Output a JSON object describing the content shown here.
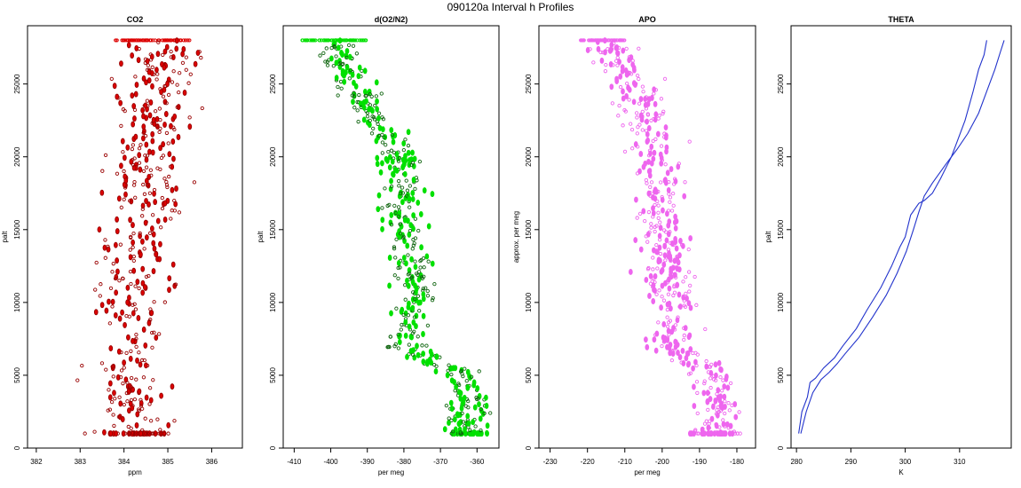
{
  "page_title": "090120a   Interval h Profiles",
  "chart_data": [
    {
      "type": "scatter",
      "title": "CO2",
      "xlabel": "ppm",
      "ylabel": "palt",
      "xlim": [
        381.8,
        386.7
      ],
      "ylim": [
        0,
        29000
      ],
      "xticks": [
        382,
        383,
        384,
        385,
        386
      ],
      "yticks": [
        0,
        5000,
        10000,
        15000,
        20000,
        25000
      ],
      "color": "#dd0000",
      "series": [
        {
          "center": [
            [
              384.3,
              1000
            ],
            [
              384.05,
              5000
            ],
            [
              384.15,
              10000
            ],
            [
              384.45,
              15000
            ],
            [
              384.55,
              20000
            ],
            [
              384.75,
              25000
            ],
            [
              384.8,
              28000
            ]
          ],
          "spread": 0.45,
          "points": 480
        }
      ],
      "cap_band": {
        "x": [
          383.8,
          385.5
        ],
        "y": 28000
      }
    },
    {
      "type": "scatter",
      "title": "d(O2/N2)",
      "xlabel": "per meg",
      "ylabel": "palt",
      "xlim": [
        -413,
        -354
      ],
      "ylim": [
        0,
        29000
      ],
      "xticks": [
        -410,
        -400,
        -390,
        -380,
        -370,
        -360
      ],
      "yticks": [
        0,
        5000,
        10000,
        15000,
        20000,
        25000
      ],
      "color": "#00e000",
      "series": [
        {
          "center": [
            [
              -362,
              1000
            ],
            [
              -363,
              5000
            ],
            [
              -380,
              7000
            ],
            [
              -377,
              10000
            ],
            [
              -380,
              15000
            ],
            [
              -381,
              20000
            ],
            [
              -393,
              25000
            ],
            [
              -400,
              28000
            ]
          ],
          "spread": 2.8,
          "points": 560
        }
      ],
      "cap_band": {
        "x": [
          -408,
          -390
        ],
        "y": 28000
      }
    },
    {
      "type": "scatter",
      "title": "APO",
      "xlabel": "per meg",
      "ylabel": "approx. per meg",
      "xlim": [
        -233,
        -175
      ],
      "ylim": [
        0,
        29000
      ],
      "xticks": [
        -230,
        -220,
        -210,
        -200,
        -190,
        -180
      ],
      "yticks": [
        0,
        5000,
        10000,
        15000,
        20000,
        25000
      ],
      "color": "#ee66ee",
      "series": [
        {
          "center": [
            [
              -185,
              1000
            ],
            [
              -186,
              5000
            ],
            [
              -198,
              7000
            ],
            [
              -197,
              10000
            ],
            [
              -200,
              15000
            ],
            [
              -201,
              20000
            ],
            [
              -208,
              25000
            ],
            [
              -215,
              28000
            ]
          ],
          "spread": 3.2,
          "points": 560
        }
      ],
      "cap_band": {
        "x": [
          -222,
          -210
        ],
        "y": 28000
      }
    },
    {
      "type": "line",
      "title": "THETA",
      "xlabel": "K",
      "ylabel": "palt",
      "xlim": [
        279,
        319.5
      ],
      "ylim": [
        0,
        29000
      ],
      "xticks": [
        280,
        290,
        300,
        310
      ],
      "yticks": [
        0,
        5000,
        10000,
        15000,
        20000,
        25000
      ],
      "color": "#2233cc",
      "series": [
        {
          "name": "",
          "x": [
            280.4,
            281,
            282,
            282.5,
            283.5,
            285,
            287,
            288.5,
            291,
            293,
            295.5,
            297.5,
            299,
            300,
            301,
            302.5,
            303.5,
            305,
            306.5,
            308.5,
            309.5,
            311,
            312.5,
            313.5,
            314.5,
            315
          ],
          "y": [
            1000,
            2500,
            3500,
            4500,
            4800,
            5500,
            6200,
            7000,
            8200,
            9500,
            11000,
            12500,
            13800,
            14500,
            16000,
            16800,
            17000,
            17500,
            18500,
            20000,
            21000,
            22500,
            24500,
            26000,
            27000,
            28000
          ]
        },
        {
          "name": "",
          "x": [
            280.8,
            281.8,
            283,
            284.5,
            286,
            287.5,
            289,
            291.5,
            294,
            296.5,
            298.5,
            300.2,
            301.5,
            302.5,
            303.5,
            305,
            307.5,
            309.5,
            311.5,
            313.5,
            315,
            316.5,
            317.5,
            318.2
          ],
          "y": [
            1000,
            2500,
            3800,
            4700,
            5200,
            5800,
            6500,
            7600,
            9000,
            10500,
            12000,
            13500,
            15000,
            16200,
            17300,
            18200,
            19500,
            20500,
            21600,
            23000,
            24500,
            26000,
            27200,
            28000
          ]
        }
      ]
    }
  ]
}
